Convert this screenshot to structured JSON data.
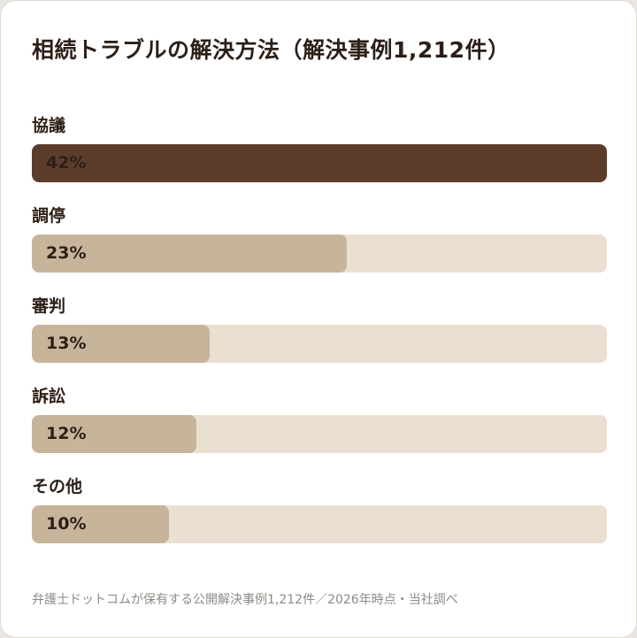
{
  "chart_data": {
    "type": "bar",
    "orientation": "horizontal",
    "title": "相続トラブルの解決方法（解決事例1,212件）",
    "categories": [
      "協議",
      "調停",
      "審判",
      "訴訟",
      "その他"
    ],
    "values": [
      42,
      23,
      13,
      12,
      10
    ],
    "value_labels": [
      "42%",
      "23%",
      "13%",
      "12%",
      "10%"
    ],
    "xlim": [
      0,
      42
    ],
    "grid": false,
    "legend": "none",
    "colors": {
      "highlight_bar": "#5c3d2b",
      "bar": "#c7b59b",
      "track": "#ebdfd2",
      "text": "#2c1f17"
    }
  },
  "footer": "弁護士ドットコムが保有する公開解決事例1,212件／2026年時点・当社調べ"
}
